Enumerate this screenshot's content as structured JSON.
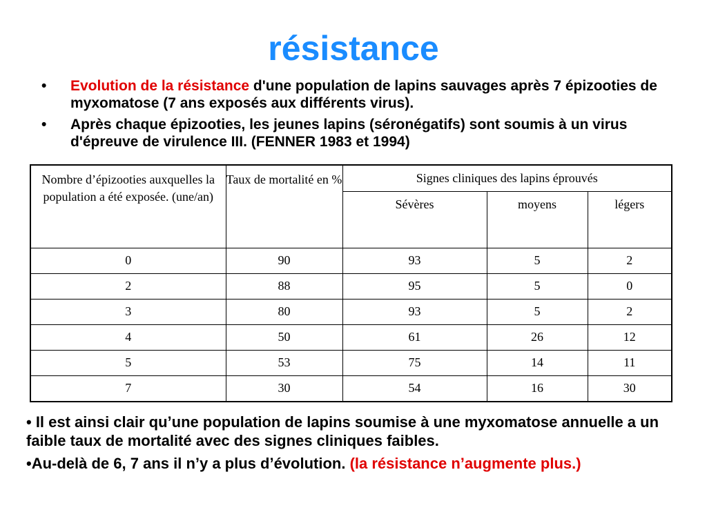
{
  "title": "résistance",
  "bullets": [
    {
      "marker": "•",
      "red": "Evolution de la résistance",
      "text": " d'une population de lapins sauvages après 7 épizooties de myxomatose (7 ans exposés aux différents virus)."
    },
    {
      "marker": "•",
      "text": "Après chaque  épizooties, les jeunes lapins (séronégatifs) sont  soumis à un virus d'épreuve de virulence III. (FENNER 1983 et 1994)"
    }
  ],
  "table": {
    "col1_header": "Nombre d’épizooties auxquelles la population a été exposée. (une/an)",
    "col2_header": "Taux de mortalité en %",
    "group_header": "Signes cliniques des lapins éprouvés",
    "sub_headers": [
      "Sévères",
      "moyens",
      "légers"
    ],
    "rows": [
      [
        "0",
        "90",
        "93",
        "5",
        "2"
      ],
      [
        "2",
        "88",
        "95",
        "5",
        "0"
      ],
      [
        "3",
        "80",
        "93",
        "5",
        "2"
      ],
      [
        "4",
        "50",
        "61",
        "26",
        "12"
      ],
      [
        "5",
        "53",
        "75",
        "14",
        "11"
      ],
      [
        "7",
        "30",
        "54",
        "16",
        "30"
      ]
    ]
  },
  "conclusions": [
    {
      "text": "• Il est ainsi clair qu’une population de lapins soumise à  une myxomatose annuelle a un faible taux de mortalité  avec des signes cliniques faibles."
    },
    {
      "text": "•Au-delà de 6, 7 ans il n’y  a plus d’évolution. ",
      "red": "(la résistance n’augmente plus.)"
    }
  ],
  "colors": {
    "title": "#1a8cff",
    "highlight": "#e00000"
  }
}
